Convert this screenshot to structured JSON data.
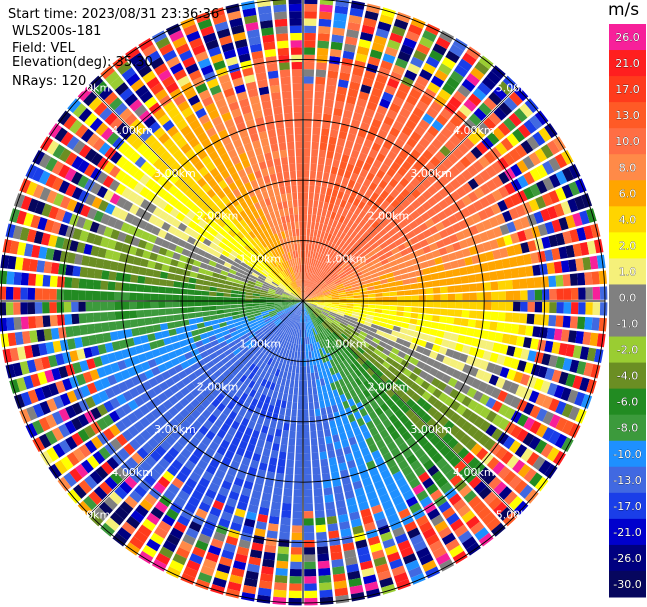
{
  "info": {
    "start_time": "Start time: 2023/08/31 23:36:36",
    "station": "WLS200s-181",
    "field": "Field: VEL",
    "elevation": "Elevation(deg): 35.30",
    "nrays": "NRays: 120"
  },
  "colorbar": {
    "unit": "m/s",
    "levels": [
      {
        "label": "26.0",
        "color": "#f7209a"
      },
      {
        "label": "21.0",
        "color": "#ff1f1f"
      },
      {
        "label": "17.0",
        "color": "#ff3b1c"
      },
      {
        "label": "13.0",
        "color": "#ff5a26"
      },
      {
        "label": "10.0",
        "color": "#ff6e44"
      },
      {
        "label": "8.0",
        "color": "#ff8a48"
      },
      {
        "label": "6.0",
        "color": "#ffa500"
      },
      {
        "label": "4.0",
        "color": "#ffd400"
      },
      {
        "label": "2.0",
        "color": "#ffff00"
      },
      {
        "label": "1.0",
        "color": "#f5f07a"
      },
      {
        "label": "0.0",
        "color": "#808080"
      },
      {
        "label": "-1.0",
        "color": "#808080"
      },
      {
        "label": "-2.0",
        "color": "#9acd32"
      },
      {
        "label": "-4.0",
        "color": "#6b8e23"
      },
      {
        "label": "-6.0",
        "color": "#228b22"
      },
      {
        "label": "-8.0",
        "color": "#3c9a3c"
      },
      {
        "label": "-10.0",
        "color": "#1e90ff"
      },
      {
        "label": "-13.0",
        "color": "#4169e1"
      },
      {
        "label": "-17.0",
        "color": "#1a3ee8"
      },
      {
        "label": "-21.0",
        "color": "#0000cd"
      },
      {
        "label": "-26.0",
        "color": "#000080"
      },
      {
        "label": "-30.0",
        "color": "#06065e"
      }
    ]
  },
  "chart_data": {
    "type": "heatmap",
    "projection": "polar (PPI)",
    "field": "VEL",
    "nrays": 120,
    "max_range_km": 5.0,
    "range_rings_km": [
      1.0,
      2.0,
      3.0,
      4.0,
      5.0
    ],
    "ring_labels": [
      "1.00km",
      "2.00km",
      "3.00km",
      "4.00km",
      "5.00km"
    ],
    "pattern": {
      "description_values": "Doppler radial velocity: receding (positive) values toward the northeast, approaching (negative) values toward the southwest, zero-velocity band along the west-northwest / east-southeast line; noisy speckle beyond about 4 km range",
      "max_positive_ms": 13.0,
      "max_negative_ms": -13.0,
      "zero_line_azimuth_deg": 115,
      "positive_peak_azimuth_deg": 25,
      "noise_start_range_km": 4.0
    }
  }
}
